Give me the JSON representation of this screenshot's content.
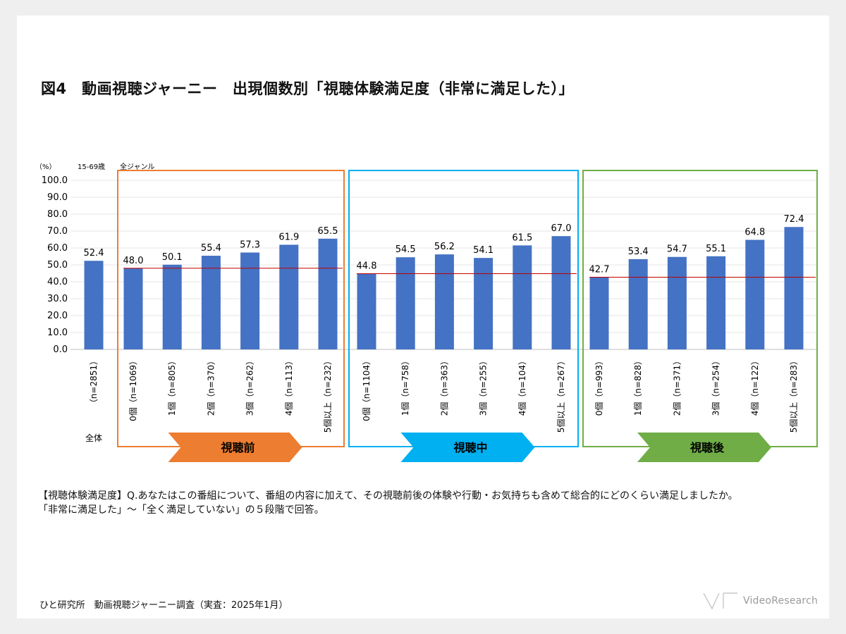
{
  "title": "図4　動画視聴ジャーニー　出現個数別「視聴体験満足度（非常に満足した）」",
  "header_labels": {
    "unit": "（%）",
    "age": "15-69歳",
    "genre": "全ジャンル"
  },
  "chart_data": {
    "type": "bar",
    "ylim": [
      0,
      100
    ],
    "yticks": [
      "100.0",
      "90.0",
      "80.0",
      "70.0",
      "60.0",
      "50.0",
      "40.0",
      "30.0",
      "20.0",
      "10.0",
      "0.0"
    ],
    "bar_color": "#4472c4",
    "reference_line_color": "#c00000",
    "overall": {
      "group_label": "全体",
      "label": "（n=2851）",
      "value": 52.4,
      "value_label": "52.4"
    },
    "groups": [
      {
        "name": "視聴前",
        "color": "#ed7d31",
        "categories": [
          "0個（n=1069）",
          "1個（n=805）",
          "2個（n=370）",
          "3個（n=262）",
          "4個（n=113）",
          "5個以上（n=232）"
        ],
        "values": [
          48.0,
          50.1,
          55.4,
          57.3,
          61.9,
          65.5
        ],
        "value_labels": [
          "48.0",
          "50.1",
          "55.4",
          "57.3",
          "61.9",
          "65.5"
        ]
      },
      {
        "name": "視聴中",
        "color": "#00b0f0",
        "categories": [
          "0個（n=1104）",
          "1個（n=758）",
          "2個（n=363）",
          "3個（n=255）",
          "4個（n=104）",
          "5個以上（n=267）"
        ],
        "values": [
          44.8,
          54.5,
          56.2,
          54.1,
          61.5,
          67.0
        ],
        "value_labels": [
          "44.8",
          "54.5",
          "56.2",
          "54.1",
          "61.5",
          "67.0"
        ]
      },
      {
        "name": "視聴後",
        "color": "#70ad47",
        "categories": [
          "0個（n=993）",
          "1個（n=828）",
          "2個（n=371）",
          "3個（n=254）",
          "4個（n=122）",
          "5個以上（n=283）"
        ],
        "values": [
          42.7,
          53.4,
          54.7,
          55.1,
          64.8,
          72.4
        ],
        "value_labels": [
          "42.7",
          "53.4",
          "54.7",
          "55.1",
          "64.8",
          "72.4"
        ]
      }
    ]
  },
  "note_lines": [
    "【視聴体験満足度】Q.あなたはこの番組について、番組の内容に加えて、その視聴前後の体験や行動・お気持ちも含めて総合的にどのくらい満足しましたか。",
    "「非常に満足した」～「全く満足していない」の５段階で回答。"
  ],
  "source": "ひと研究所　動画視聴ジャーニー調査（実査：2025年1月）",
  "logo": {
    "text": "VideoResearch",
    "color": "#9a9a9a"
  }
}
